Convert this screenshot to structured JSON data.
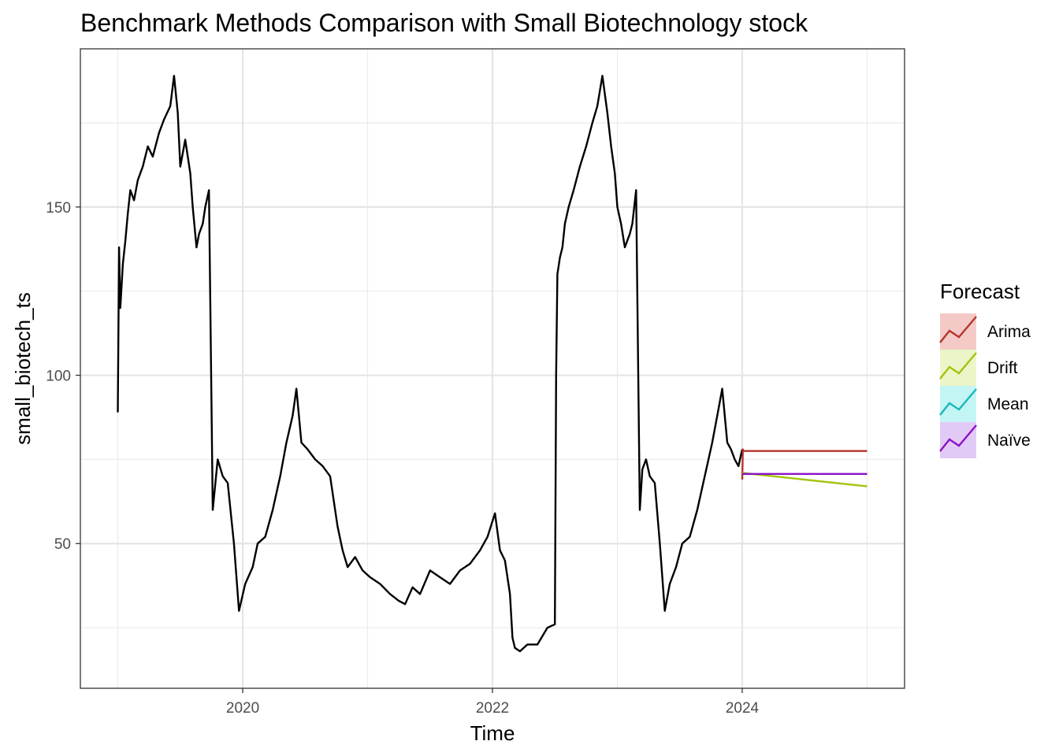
{
  "chart_data": {
    "type": "line",
    "title": "Benchmark Methods Comparison with Small Biotechnology stock",
    "xlabel": "Time",
    "ylabel": "small_biotech_ts",
    "xlim": [
      2018.7,
      2025.3
    ],
    "ylim": [
      7,
      197
    ],
    "x_ticks": [
      2020,
      2022,
      2024
    ],
    "x_tick_labels": [
      "2020",
      "2022",
      "2024"
    ],
    "x_minor_ticks": [
      2019,
      2021,
      2023,
      2025
    ],
    "y_ticks": [
      50,
      100,
      150
    ],
    "y_tick_labels": [
      "50",
      "100",
      "150"
    ],
    "y_minor_ticks": [
      25,
      75,
      125,
      175
    ],
    "grid": true,
    "legend": {
      "title": "Forecast",
      "position": "right"
    },
    "series": [
      {
        "name": "small_biotech_ts",
        "color": "#000000",
        "x": [
          2019.0,
          2019.01,
          2019.02,
          2019.04,
          2019.06,
          2019.08,
          2019.1,
          2019.13,
          2019.16,
          2019.2,
          2019.24,
          2019.28,
          2019.33,
          2019.37,
          2019.42,
          2019.45,
          2019.48,
          2019.5,
          2019.54,
          2019.58,
          2019.6,
          2019.63,
          2019.65,
          2019.68,
          2019.7,
          2019.73,
          2019.76,
          2019.8,
          2019.84,
          2019.88,
          2019.93,
          2019.97,
          2020.02,
          2020.08,
          2020.12,
          2020.18,
          2020.24,
          2020.3,
          2020.35,
          2020.4,
          2020.43,
          2020.47,
          2020.52,
          2020.58,
          2020.64,
          2020.7,
          2020.74,
          2020.76,
          2020.8,
          2020.84,
          2020.9,
          2020.96,
          2021.02,
          2021.1,
          2021.18,
          2021.25,
          2021.3,
          2021.36,
          2021.42,
          2021.5,
          2021.58,
          2021.66,
          2021.74,
          2021.82,
          2021.9,
          2021.96,
          2022.02,
          2022.06,
          2022.1,
          2022.14,
          2022.16,
          2022.18,
          2022.22,
          2022.28,
          2022.36,
          2022.44,
          2022.5,
          2022.51,
          2022.52,
          2022.54,
          2022.56,
          2022.58,
          2022.61,
          2022.65,
          2022.7,
          2022.75,
          2022.8,
          2022.84,
          2022.88,
          2022.92,
          2022.95,
          2022.98,
          2023.0,
          2023.03,
          2023.06,
          2023.1,
          2023.12,
          2023.15,
          2023.18,
          2023.2,
          2023.23,
          2023.26,
          2023.3,
          2023.34,
          2023.38,
          2023.42,
          2023.47,
          2023.52,
          2023.58,
          2023.64,
          2023.7,
          2023.76,
          2023.8,
          2023.84,
          2023.88,
          2023.91,
          2023.94,
          2023.97,
          2024.0
        ],
        "y": [
          89,
          138,
          120,
          133,
          140,
          148,
          155,
          152,
          158,
          162,
          168,
          165,
          172,
          176,
          180,
          189,
          178,
          162,
          170,
          160,
          150,
          138,
          142,
          145,
          150,
          155,
          60,
          75,
          70,
          68,
          50,
          30,
          38,
          43,
          50,
          52,
          60,
          70,
          80,
          88,
          96,
          80,
          78,
          75,
          73,
          70,
          60,
          55,
          48,
          43,
          46,
          42,
          40,
          38,
          35,
          33,
          32,
          37,
          35,
          42,
          40,
          38,
          42,
          44,
          48,
          52,
          59,
          48,
          45,
          35,
          22,
          19,
          18,
          20,
          20,
          25,
          26,
          100,
          130,
          135,
          138,
          145,
          150,
          155,
          162,
          168,
          175,
          180,
          189,
          178,
          168,
          160,
          150,
          145,
          138,
          142,
          145,
          155,
          60,
          72,
          75,
          70,
          68,
          50,
          30,
          38,
          43,
          50,
          52,
          60,
          70,
          80,
          88,
          96,
          80,
          78,
          75,
          73,
          78
        ]
      },
      {
        "name": "Arima",
        "color": "#b5352e",
        "x": [
          2024.0,
          2024.005,
          2024.01,
          2025.0
        ],
        "y": [
          69,
          78,
          77.5,
          77.5
        ]
      },
      {
        "name": "Drift",
        "color": "#a3c40e",
        "x": [
          2024.0,
          2025.0
        ],
        "y": [
          71,
          67
        ]
      },
      {
        "name": "Mean",
        "color": "#1ab9b9",
        "x": [],
        "y": []
      },
      {
        "name": "Naïve",
        "color": "#8b12c9",
        "x": [
          2024.0,
          2025.0
        ],
        "y": [
          70.7,
          70.7
        ]
      }
    ]
  },
  "legend_items": [
    {
      "name": "Arima",
      "color": "#b5352e",
      "fill": "#f4cac6"
    },
    {
      "name": "Drift",
      "color": "#a3c40e",
      "fill": "#eaf6c8"
    },
    {
      "name": "Mean",
      "color": "#1ab9b9",
      "fill": "#c3f5f5"
    },
    {
      "name": "Naïve",
      "color": "#8b12c9",
      "fill": "#e2caf6"
    }
  ]
}
